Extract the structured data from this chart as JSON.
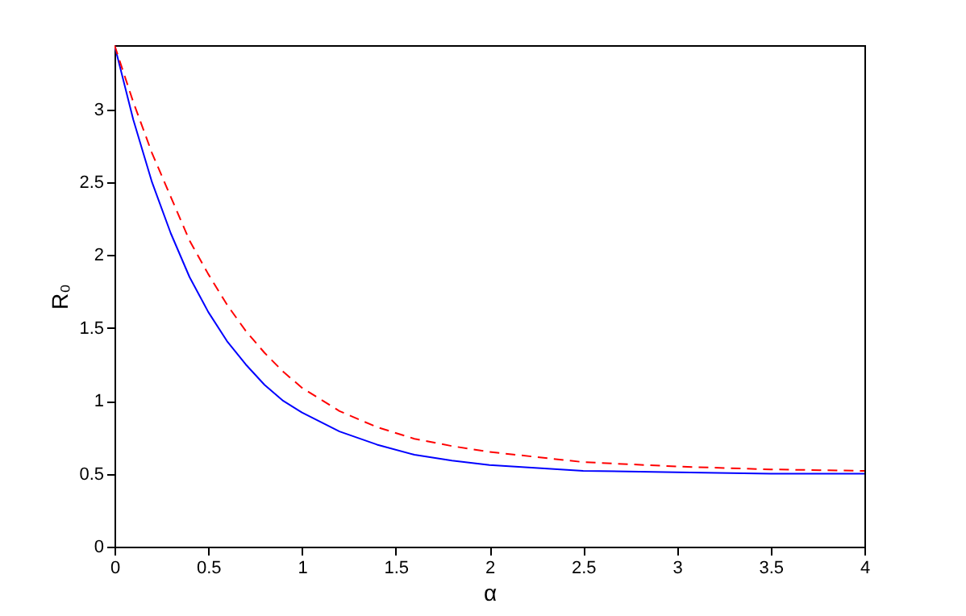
{
  "chart_data": {
    "type": "line",
    "xlabel": "α",
    "ylabel": "R₀",
    "xlim": [
      0,
      4
    ],
    "ylim": [
      0,
      3.44
    ],
    "xticks": [
      0,
      0.5,
      1,
      1.5,
      2,
      2.5,
      3,
      3.5,
      4
    ],
    "yticks": [
      0,
      0.5,
      1,
      1.5,
      2,
      2.5,
      3
    ],
    "grid": false,
    "marker": "none",
    "x": [
      0,
      0.1,
      0.2,
      0.3,
      0.4,
      0.5,
      0.6,
      0.7,
      0.8,
      0.9,
      1.0,
      1.2,
      1.4,
      1.6,
      1.8,
      2.0,
      2.5,
      3,
      3.5,
      4
    ],
    "series": [
      {
        "color": "#0000ff",
        "line_style": "solid",
        "values": [
          3.44,
          2.93,
          2.5,
          2.15,
          1.85,
          1.61,
          1.41,
          1.25,
          1.11,
          1.0,
          0.92,
          0.79,
          0.7,
          0.63,
          0.59,
          0.56,
          0.52,
          0.51,
          0.5,
          0.5
        ]
      },
      {
        "color": "#ff0000",
        "line_style": "dashed",
        "values": [
          3.44,
          3.05,
          2.7,
          2.4,
          2.1,
          1.87,
          1.66,
          1.48,
          1.33,
          1.2,
          1.09,
          0.93,
          0.82,
          0.74,
          0.69,
          0.65,
          0.58,
          0.55,
          0.53,
          0.52
        ]
      }
    ]
  }
}
